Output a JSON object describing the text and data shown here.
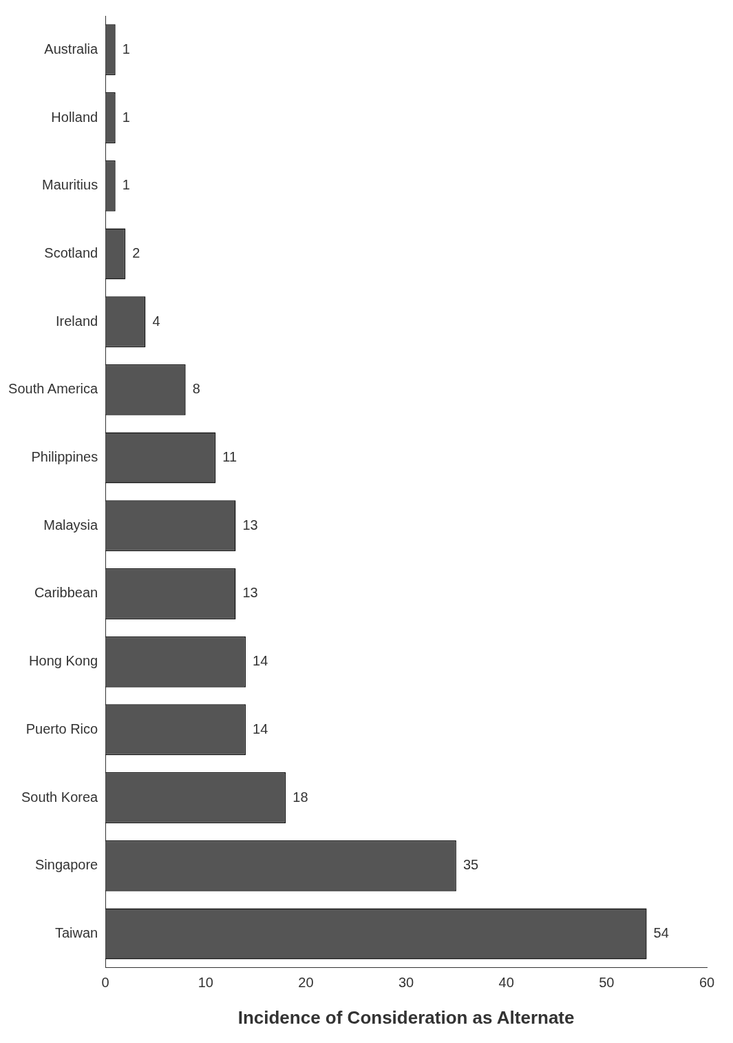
{
  "chart_data": {
    "type": "bar",
    "orientation": "horizontal",
    "xlabel": "Incidence of Consideration as Alternate",
    "categories": [
      "Australia",
      "Holland",
      "Mauritius",
      "Scotland",
      "Ireland",
      "South America",
      "Philippines",
      "Malaysia",
      "Caribbean",
      "Hong Kong",
      "Puerto Rico",
      "South Korea",
      "Singapore",
      "Taiwan"
    ],
    "values": [
      1,
      1,
      1,
      2,
      4,
      8,
      11,
      13,
      13,
      14,
      14,
      18,
      35,
      54
    ],
    "color": "#555555",
    "xlim": [
      0,
      60
    ],
    "xticks": [
      0,
      10,
      20,
      30,
      40,
      50,
      60
    ],
    "grid": false,
    "legend": false,
    "data_labels": true
  }
}
